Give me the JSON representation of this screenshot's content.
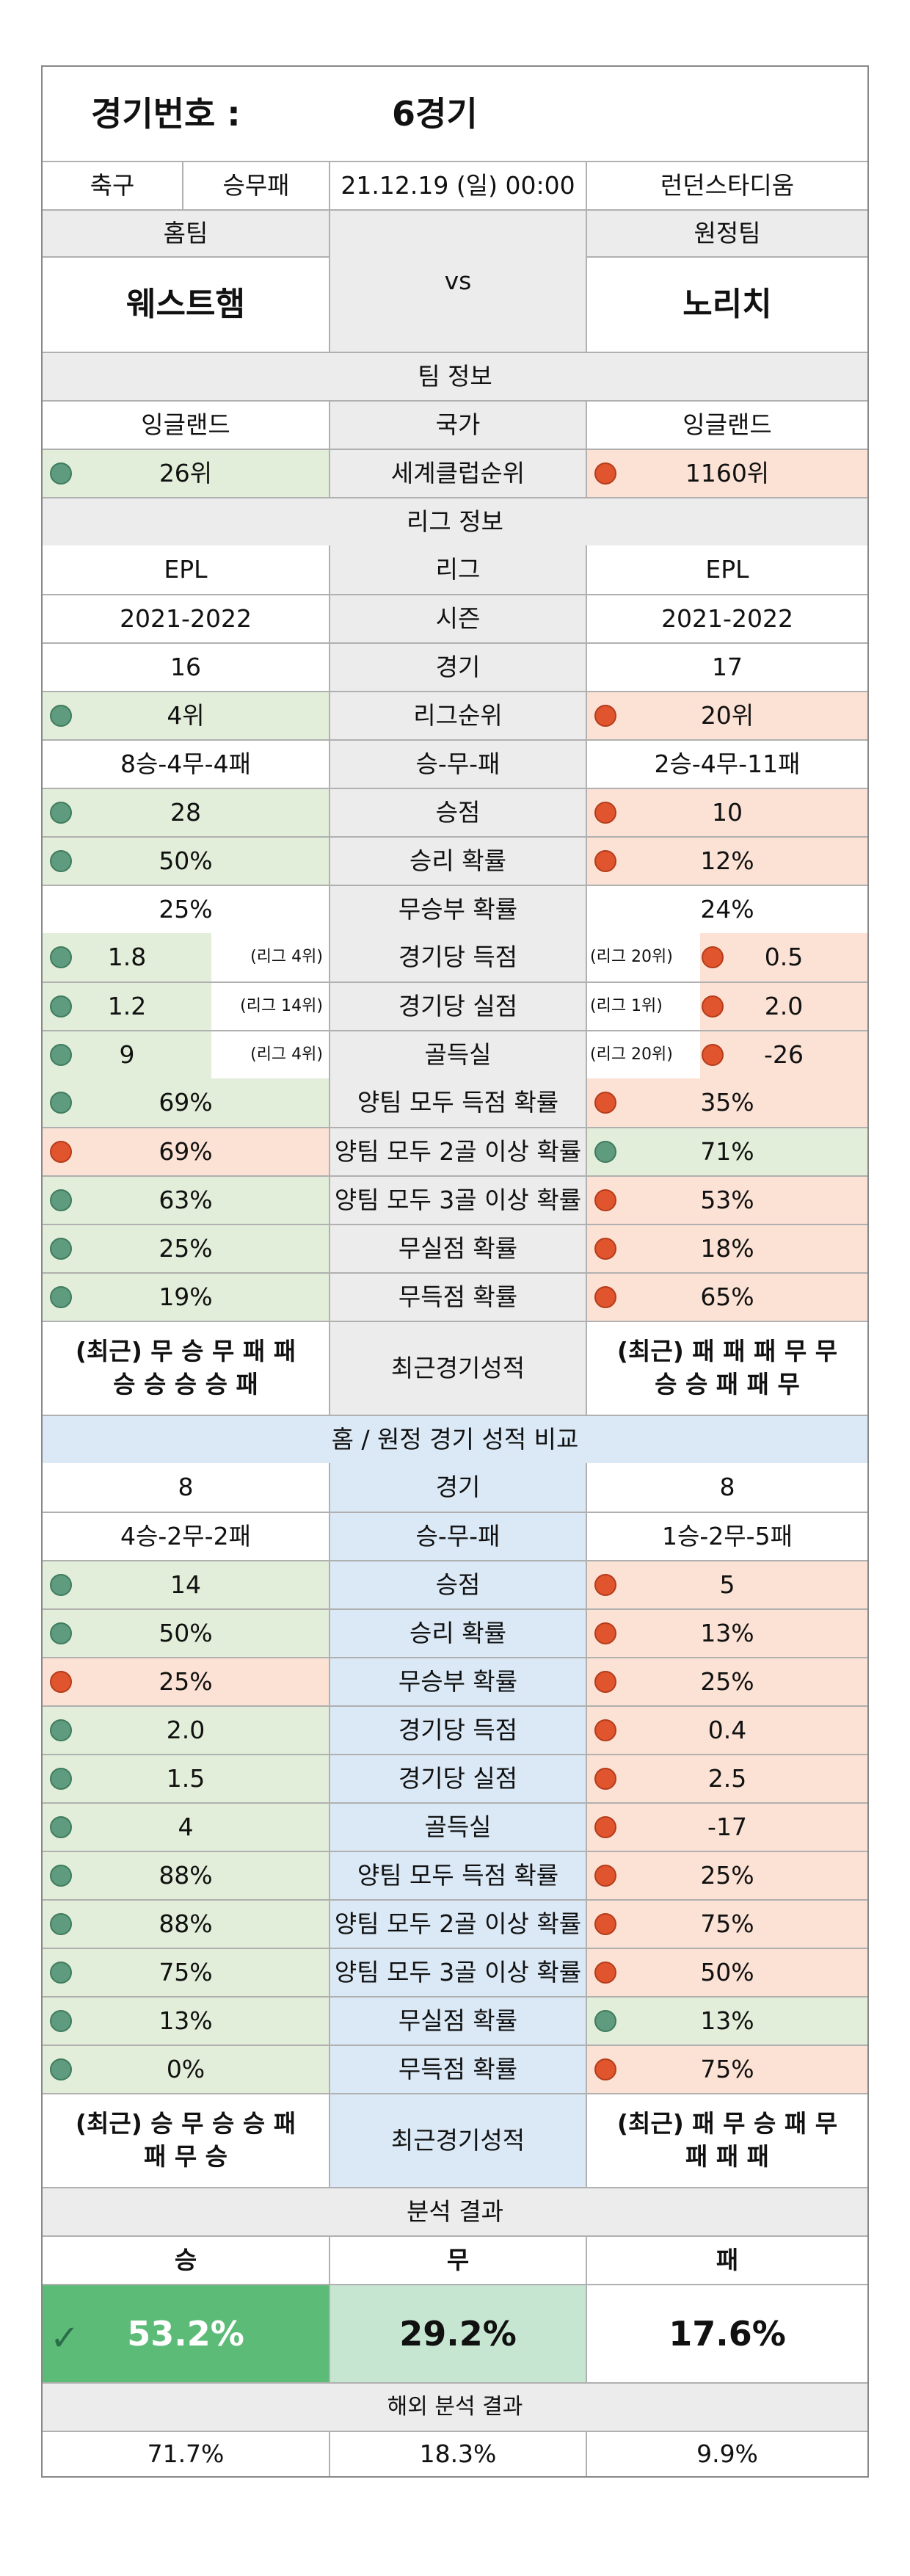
{
  "header": {
    "match_label": "경기번호 :",
    "match_no": "6경기",
    "sport": "축구",
    "bet_type": "승무패",
    "datetime": "21.12.19 (일) 00:00",
    "stadium": "런던스타디움",
    "home_label": "홈팀",
    "away_label": "원정팀",
    "vs": "vs",
    "home_team": "웨스트햄",
    "away_team": "노리치"
  },
  "team_info": {
    "title": "팀 정보",
    "country_label": "국가",
    "home_country": "잉글랜드",
    "away_country": "잉글랜드",
    "club_rank_label": "세계클럽순위",
    "home_club_rank": "26위",
    "away_club_rank": "1160위"
  },
  "league_info": {
    "title": "리그 정보",
    "rows": [
      {
        "label": "리그",
        "home": "EPL",
        "away": "EPL",
        "hc": "white",
        "ac": "white",
        "hd": "",
        "ad": ""
      },
      {
        "label": "시즌",
        "home": "2021-2022",
        "away": "2021-2022",
        "hc": "white",
        "ac": "white",
        "hd": "",
        "ad": ""
      },
      {
        "label": "경기",
        "home": "16",
        "away": "17",
        "hc": "white",
        "ac": "white",
        "hd": "",
        "ad": ""
      },
      {
        "label": "리그순위",
        "home": "4위",
        "away": "20위",
        "hc": "green",
        "ac": "red",
        "hd": "g",
        "ad": "r"
      },
      {
        "label": "승-무-패",
        "home": "8승-4무-4패",
        "away": "2승-4무-11패",
        "hc": "white",
        "ac": "white",
        "hd": "",
        "ad": ""
      },
      {
        "label": "승점",
        "home": "28",
        "away": "10",
        "hc": "green",
        "ac": "red",
        "hd": "g",
        "ad": "r"
      },
      {
        "label": "승리 확률",
        "home": "50%",
        "away": "12%",
        "hc": "green",
        "ac": "red",
        "hd": "g",
        "ad": "r"
      },
      {
        "label": "무승부 확률",
        "home": "25%",
        "away": "24%",
        "hc": "white",
        "ac": "white",
        "hd": "",
        "ad": ""
      }
    ],
    "split_rows": [
      {
        "label": "경기당 득점",
        "home": "1.8",
        "home_rank": "(리그 4위)",
        "away": "0.5",
        "away_rank": "(리그 20위)"
      },
      {
        "label": "경기당 실점",
        "home": "1.2",
        "home_rank": "(리그 14위)",
        "away": "2.0",
        "away_rank": "(리그 1위)"
      },
      {
        "label": "골득실",
        "home": "9",
        "home_rank": "(리그 4위)",
        "away": "-26",
        "away_rank": "(리그 20위)"
      }
    ],
    "prob_rows": [
      {
        "label": "양팀 모두 득점 확률",
        "home": "69%",
        "away": "35%",
        "hc": "green",
        "ac": "red",
        "hd": "g",
        "ad": "r"
      },
      {
        "label": "양팀 모두 2골 이상 확률",
        "home": "69%",
        "away": "71%",
        "hc": "red",
        "ac": "green",
        "hd": "r",
        "ad": "g"
      },
      {
        "label": "양팀 모두 3골 이상 확률",
        "home": "63%",
        "away": "53%",
        "hc": "green",
        "ac": "red",
        "hd": "g",
        "ad": "r"
      },
      {
        "label": "무실점 확률",
        "home": "25%",
        "away": "18%",
        "hc": "green",
        "ac": "red",
        "hd": "g",
        "ad": "r"
      },
      {
        "label": "무득점 확률",
        "home": "19%",
        "away": "65%",
        "hc": "green",
        "ac": "red",
        "hd": "g",
        "ad": "r"
      }
    ],
    "recent_label": "최근경기성적",
    "home_recent_1": "(최근) 무 승 무 패 패",
    "home_recent_2": "승 승 승 승 패",
    "away_recent_1": "(최근) 패 패 패 무 무",
    "away_recent_2": "승 승 패 패 무"
  },
  "home_away": {
    "title": "홈 / 원정 경기 성적 비교",
    "rows": [
      {
        "label": "경기",
        "home": "8",
        "away": "8",
        "hc": "white",
        "ac": "white",
        "hd": "",
        "ad": ""
      },
      {
        "label": "승-무-패",
        "home": "4승-2무-2패",
        "away": "1승-2무-5패",
        "hc": "white",
        "ac": "white",
        "hd": "",
        "ad": ""
      },
      {
        "label": "승점",
        "home": "14",
        "away": "5",
        "hc": "green",
        "ac": "red",
        "hd": "g",
        "ad": "r"
      },
      {
        "label": "승리 확률",
        "home": "50%",
        "away": "13%",
        "hc": "green",
        "ac": "red",
        "hd": "g",
        "ad": "r"
      },
      {
        "label": "무승부 확률",
        "home": "25%",
        "away": "25%",
        "hc": "red",
        "ac": "red",
        "hd": "r",
        "ad": "r"
      },
      {
        "label": "경기당 득점",
        "home": "2.0",
        "away": "0.4",
        "hc": "green",
        "ac": "red",
        "hd": "g",
        "ad": "r"
      },
      {
        "label": "경기당 실점",
        "home": "1.5",
        "away": "2.5",
        "hc": "green",
        "ac": "red",
        "hd": "g",
        "ad": "r"
      },
      {
        "label": "골득실",
        "home": "4",
        "away": "-17",
        "hc": "green",
        "ac": "red",
        "hd": "g",
        "ad": "r"
      },
      {
        "label": "양팀 모두 득점 확률",
        "home": "88%",
        "away": "25%",
        "hc": "green",
        "ac": "red",
        "hd": "g",
        "ad": "r"
      },
      {
        "label": "양팀 모두 2골 이상 확률",
        "home": "88%",
        "away": "75%",
        "hc": "green",
        "ac": "red",
        "hd": "g",
        "ad": "r"
      },
      {
        "label": "양팀 모두 3골 이상 확률",
        "home": "75%",
        "away": "50%",
        "hc": "green",
        "ac": "red",
        "hd": "g",
        "ad": "r"
      },
      {
        "label": "무실점 확률",
        "home": "13%",
        "away": "13%",
        "hc": "green",
        "ac": "green",
        "hd": "g",
        "ad": "g"
      },
      {
        "label": "무득점 확률",
        "home": "0%",
        "away": "75%",
        "hc": "green",
        "ac": "red",
        "hd": "g",
        "ad": "r"
      }
    ],
    "recent_label": "최근경기성적",
    "home_recent_1": "(최근) 승 무 승 승 패",
    "home_recent_2": "패 무 승",
    "away_recent_1": "(최근) 패 무 승 패 무",
    "away_recent_2": "패 패 패"
  },
  "analysis": {
    "title": "분석 결과",
    "win_label": "승",
    "draw_label": "무",
    "lose_label": "패",
    "win_pct": "53.2%",
    "draw_pct": "29.2%",
    "lose_pct": "17.6%",
    "overseas_title": "해외 분석 결과",
    "overseas_win": "71.7%",
    "overseas_draw": "18.3%",
    "overseas_lose": "9.9%"
  },
  "colors": {
    "green_fill": "#e2eed9",
    "red_fill": "#fbe2d5",
    "blue_fill": "#dbe9f6",
    "gray_fill": "#ececec",
    "win_fill": "#5dbb78",
    "draw_fill": "#c7e6d2",
    "green_dot": "#5f9b7e",
    "red_dot": "#e0552e"
  }
}
